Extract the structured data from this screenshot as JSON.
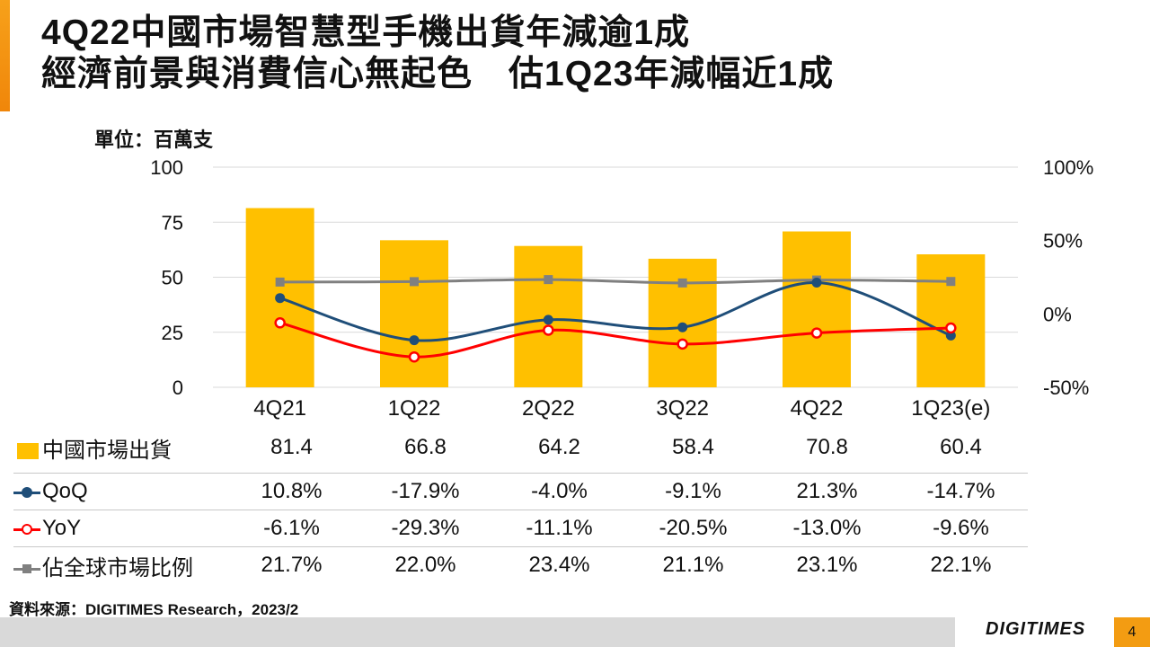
{
  "title": {
    "line1": "4Q22中國市場智慧型手機出貨年減逾1成",
    "line2": "經濟前景與消費信心無起色　估1Q23年減幅近1成"
  },
  "unit_label": "單位：百萬支",
  "colors": {
    "bars": "#ffc000",
    "qoq": "#1f4e79",
    "yoy": "#ff0000",
    "share": "#808080",
    "accent": "#f39c12"
  },
  "icons": {
    "bar_key": "yellow-square",
    "qoq_key": "line-filled-circle",
    "yoy_key": "line-hollow-circle",
    "share_key": "line-square"
  },
  "chart_data": {
    "type": "bar",
    "categories": [
      "4Q21",
      "1Q22",
      "2Q22",
      "3Q22",
      "4Q22",
      "1Q23(e)"
    ],
    "ylim": [
      0,
      100
    ],
    "y_ticks": [
      "100",
      "75",
      "50",
      "25",
      "0"
    ],
    "y2lim": [
      -0.5,
      1.0
    ],
    "y2_ticks": [
      "100%",
      "50%",
      "0%",
      "-50%"
    ],
    "grid": true,
    "series": [
      {
        "name": "中國市場出貨",
        "type": "bar",
        "axis": "left",
        "values": [
          81.4,
          66.8,
          64.2,
          58.4,
          70.8,
          60.4
        ],
        "labels": [
          "81.4",
          "66.8",
          "64.2",
          "58.4",
          "70.8",
          "60.4"
        ]
      },
      {
        "name": "QoQ",
        "type": "line",
        "axis": "right",
        "marker": "filled-circle",
        "values": [
          0.108,
          -0.179,
          -0.04,
          -0.091,
          0.213,
          -0.147
        ],
        "labels": [
          "10.8%",
          "-17.9%",
          "-4.0%",
          "-9.1%",
          "21.3%",
          "-14.7%"
        ]
      },
      {
        "name": "YoY",
        "type": "line",
        "axis": "right",
        "marker": "hollow-circle",
        "values": [
          -0.061,
          -0.293,
          -0.111,
          -0.205,
          -0.13,
          -0.096
        ],
        "labels": [
          "-6.1%",
          "-29.3%",
          "-11.1%",
          "-20.5%",
          "-13.0%",
          "-9.6%"
        ]
      },
      {
        "name": "佔全球市場比例",
        "type": "line",
        "axis": "right",
        "marker": "square",
        "values": [
          0.217,
          0.22,
          0.234,
          0.211,
          0.231,
          0.221
        ],
        "labels": [
          "21.7%",
          "22.0%",
          "23.4%",
          "21.1%",
          "23.1%",
          "22.1%"
        ]
      }
    ]
  },
  "source": "資料來源：DIGITIMES Research，2023/2",
  "footer": {
    "brand": "DIGITIMES",
    "page_number": "4"
  }
}
